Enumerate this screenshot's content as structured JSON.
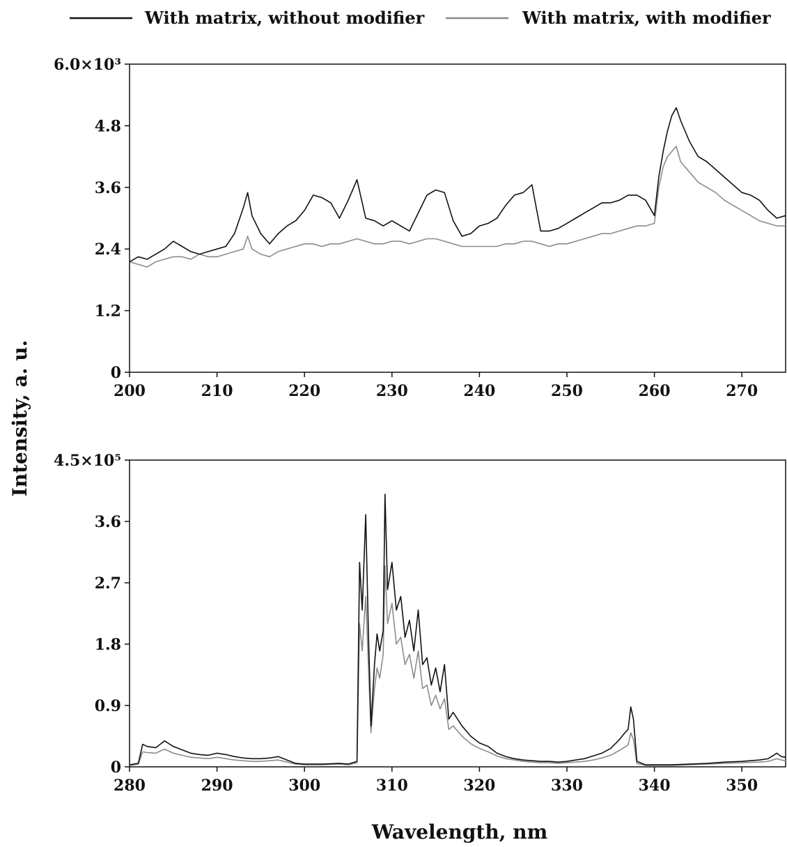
{
  "chart_data": [
    {
      "type": "line",
      "xlabel": "",
      "ylabel": "Intensity, a. u.",
      "xlim": [
        200,
        275
      ],
      "ylim": [
        0,
        6000
      ],
      "x_ticks": [
        200,
        210,
        220,
        230,
        240,
        250,
        260,
        270
      ],
      "y_ticks": [
        0,
        1200,
        2400,
        3600,
        4800,
        6000
      ],
      "y_tick_labels": [
        "0",
        "1.2",
        "2.4",
        "3.6",
        "4.8",
        "6.0×10³"
      ],
      "grid": false,
      "series": [
        {
          "name": "With matrix, without modifier",
          "color": "#111111",
          "x": [
            200,
            201,
            202,
            203,
            204,
            205,
            206,
            207,
            208,
            209,
            210,
            211,
            212,
            213,
            213.5,
            214,
            215,
            216,
            217,
            218,
            219,
            220,
            221,
            222,
            223,
            224,
            225,
            226,
            227,
            228,
            229,
            230,
            231,
            232,
            233,
            234,
            235,
            236,
            237,
            238,
            239,
            240,
            241,
            242,
            243,
            244,
            245,
            246,
            247,
            248,
            249,
            250,
            251,
            252,
            253,
            254,
            255,
            256,
            257,
            258,
            259,
            260,
            260.5,
            261,
            261.5,
            262,
            262.5,
            263,
            264,
            265,
            266,
            267,
            268,
            269,
            270,
            271,
            272,
            273,
            274,
            275
          ],
          "y": [
            2150,
            2250,
            2200,
            2300,
            2400,
            2550,
            2450,
            2350,
            2300,
            2350,
            2400,
            2450,
            2700,
            3200,
            3500,
            3050,
            2700,
            2500,
            2700,
            2850,
            2950,
            3150,
            3450,
            3400,
            3300,
            3000,
            3350,
            3750,
            3000,
            2950,
            2850,
            2950,
            2850,
            2750,
            3100,
            3450,
            3550,
            3500,
            2950,
            2650,
            2700,
            2850,
            2900,
            3000,
            3250,
            3450,
            3500,
            3650,
            2750,
            2750,
            2800,
            2900,
            3000,
            3100,
            3200,
            3300,
            3300,
            3350,
            3450,
            3450,
            3350,
            3050,
            3800,
            4300,
            4700,
            5000,
            5150,
            4900,
            4500,
            4200,
            4100,
            3950,
            3800,
            3650,
            3500,
            3450,
            3350,
            3150,
            3000,
            3050
          ]
        },
        {
          "name": "With matrix, with modifier",
          "color": "#8c8c8c",
          "x": [
            200,
            201,
            202,
            203,
            204,
            205,
            206,
            207,
            208,
            209,
            210,
            211,
            212,
            213,
            213.5,
            214,
            215,
            216,
            217,
            218,
            219,
            220,
            221,
            222,
            223,
            224,
            225,
            226,
            227,
            228,
            229,
            230,
            231,
            232,
            233,
            234,
            235,
            236,
            237,
            238,
            239,
            240,
            241,
            242,
            243,
            244,
            245,
            246,
            247,
            248,
            249,
            250,
            251,
            252,
            253,
            254,
            255,
            256,
            257,
            258,
            259,
            260,
            260.5,
            261,
            261.5,
            262,
            262.5,
            263,
            264,
            265,
            266,
            267,
            268,
            269,
            270,
            271,
            272,
            273,
            274,
            275
          ],
          "y": [
            2150,
            2100,
            2050,
            2150,
            2200,
            2250,
            2250,
            2200,
            2300,
            2250,
            2250,
            2300,
            2350,
            2400,
            2650,
            2400,
            2300,
            2250,
            2350,
            2400,
            2450,
            2500,
            2500,
            2450,
            2500,
            2500,
            2550,
            2600,
            2550,
            2500,
            2500,
            2550,
            2550,
            2500,
            2550,
            2600,
            2600,
            2550,
            2500,
            2450,
            2450,
            2450,
            2450,
            2450,
            2500,
            2500,
            2550,
            2550,
            2500,
            2450,
            2500,
            2500,
            2550,
            2600,
            2650,
            2700,
            2700,
            2750,
            2800,
            2850,
            2850,
            2900,
            3600,
            4000,
            4200,
            4300,
            4400,
            4100,
            3900,
            3700,
            3600,
            3500,
            3350,
            3250,
            3150,
            3050,
            2950,
            2900,
            2850,
            2850
          ]
        }
      ]
    },
    {
      "type": "line",
      "xlabel": "Wavelength, nm",
      "ylabel": "Intensity, a. u.",
      "xlim": [
        280,
        355
      ],
      "ylim": [
        0,
        450000
      ],
      "x_ticks": [
        280,
        290,
        300,
        310,
        320,
        330,
        340,
        350
      ],
      "y_ticks": [
        0,
        90000,
        180000,
        270000,
        360000,
        450000
      ],
      "y_tick_labels": [
        "0",
        "0.9",
        "1.8",
        "2.7",
        "3.6",
        "4.5×10⁵"
      ],
      "grid": false,
      "series": [
        {
          "name": "With matrix, without modifier",
          "color": "#111111",
          "x": [
            280,
            281,
            281.5,
            282,
            283,
            284,
            285,
            286,
            287,
            288,
            289,
            290,
            291,
            292,
            293,
            294,
            295,
            296,
            297,
            298,
            299,
            300,
            302,
            304,
            305,
            306,
            306.3,
            306.6,
            307,
            307.3,
            307.6,
            308,
            308.3,
            308.6,
            309,
            309.2,
            309.5,
            310,
            310.5,
            311,
            311.5,
            312,
            312.5,
            313,
            313.5,
            314,
            314.5,
            315,
            315.5,
            316,
            316.5,
            317,
            318,
            319,
            320,
            321,
            322,
            323,
            324,
            325,
            326,
            327,
            328,
            329,
            330,
            331,
            332,
            333,
            334,
            335,
            336,
            336.5,
            337,
            337.3,
            337.6,
            338,
            339,
            340,
            342,
            344,
            346,
            348,
            350,
            352,
            353,
            354,
            354.5,
            355
          ],
          "y": [
            3000,
            5000,
            33000,
            30000,
            28000,
            38000,
            30000,
            25000,
            20000,
            18000,
            17000,
            20000,
            18000,
            15000,
            13000,
            12000,
            12000,
            13000,
            15000,
            10000,
            5000,
            4000,
            4000,
            5000,
            4000,
            8000,
            300000,
            230000,
            370000,
            200000,
            60000,
            150000,
            195000,
            170000,
            200000,
            400000,
            260000,
            300000,
            230000,
            250000,
            190000,
            215000,
            170000,
            230000,
            150000,
            160000,
            120000,
            145000,
            110000,
            150000,
            70000,
            80000,
            60000,
            45000,
            35000,
            30000,
            20000,
            15000,
            12000,
            10000,
            9000,
            8000,
            8000,
            7000,
            8000,
            10000,
            12000,
            16000,
            20000,
            27000,
            40000,
            48000,
            55000,
            88000,
            70000,
            8000,
            3000,
            3000,
            3000,
            4000,
            5000,
            7000,
            8000,
            10000,
            12000,
            20000,
            15000,
            14000
          ]
        },
        {
          "name": "With matrix, with modifier",
          "color": "#8c8c8c",
          "x": [
            280,
            281,
            281.5,
            282,
            283,
            284,
            285,
            286,
            287,
            288,
            289,
            290,
            291,
            292,
            293,
            294,
            295,
            296,
            297,
            298,
            299,
            300,
            302,
            304,
            305,
            306,
            306.3,
            306.6,
            307,
            307.3,
            307.6,
            308,
            308.3,
            308.6,
            309,
            309.2,
            309.5,
            310,
            310.5,
            311,
            311.5,
            312,
            312.5,
            313,
            313.5,
            314,
            314.5,
            315,
            315.5,
            316,
            316.5,
            317,
            318,
            319,
            320,
            321,
            322,
            323,
            324,
            325,
            326,
            327,
            328,
            329,
            330,
            331,
            332,
            333,
            334,
            335,
            336,
            336.5,
            337,
            337.3,
            337.6,
            338,
            339,
            340,
            342,
            344,
            346,
            348,
            350,
            352,
            353,
            354,
            354.5,
            355
          ],
          "y": [
            2000,
            4000,
            22000,
            21000,
            20000,
            26000,
            20000,
            17000,
            14000,
            13000,
            12000,
            14000,
            12000,
            10000,
            9000,
            8000,
            8000,
            9000,
            10000,
            7000,
            4000,
            3000,
            3000,
            4000,
            3000,
            6000,
            210000,
            170000,
            250000,
            150000,
            50000,
            115000,
            145000,
            130000,
            165000,
            295000,
            210000,
            240000,
            180000,
            190000,
            150000,
            165000,
            130000,
            170000,
            115000,
            120000,
            90000,
            105000,
            85000,
            100000,
            55000,
            60000,
            45000,
            34000,
            27000,
            22000,
            16000,
            12000,
            10000,
            8000,
            7000,
            6000,
            6000,
            5000,
            6000,
            7000,
            8000,
            10000,
            13000,
            17000,
            24000,
            28000,
            32000,
            50000,
            40000,
            5000,
            2000,
            2000,
            2000,
            3000,
            4000,
            5000,
            6000,
            7000,
            8000,
            12000,
            10000,
            9000
          ]
        }
      ]
    }
  ]
}
